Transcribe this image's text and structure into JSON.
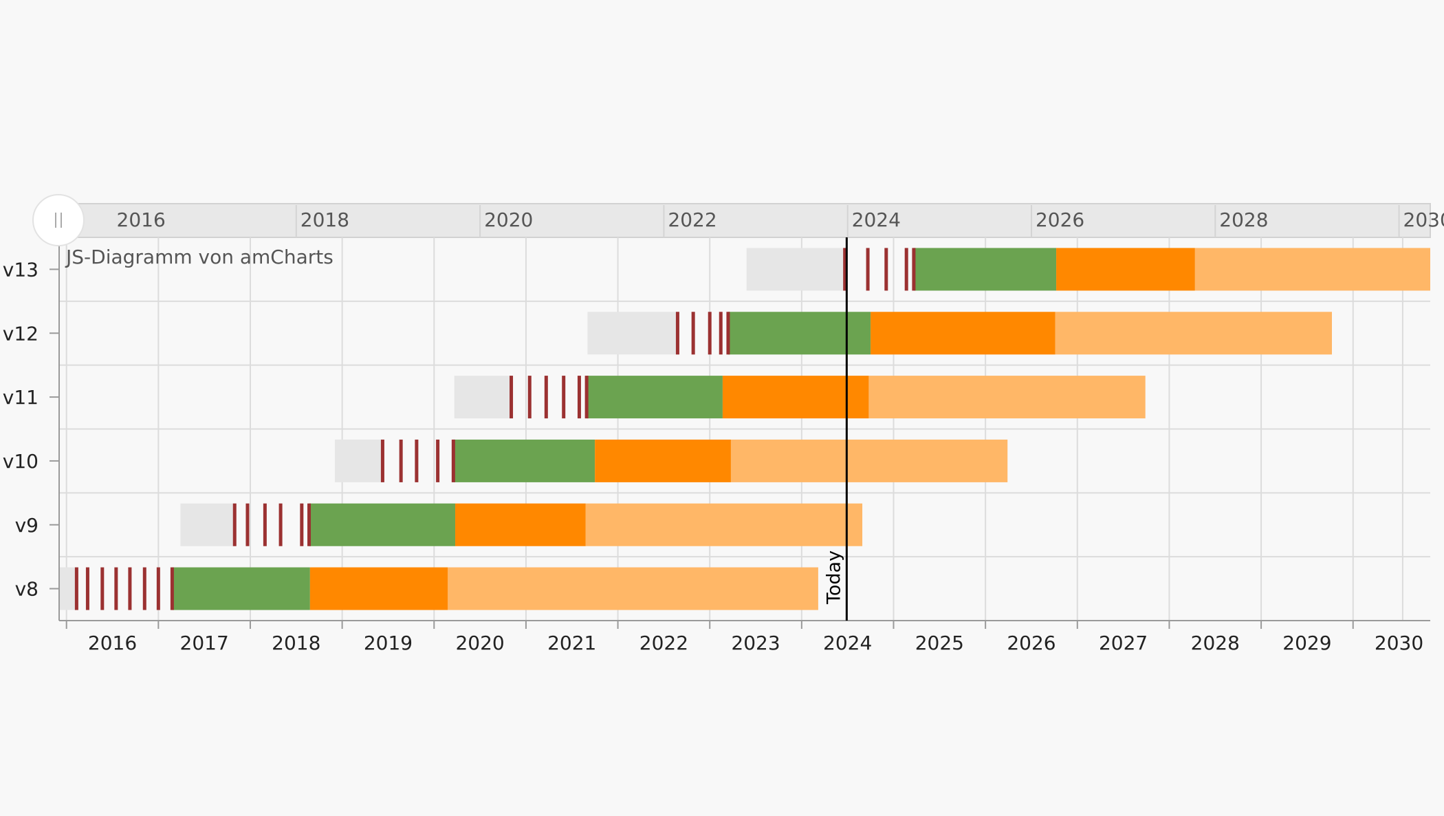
{
  "chart_data": {
    "type": "gantt",
    "credit": "JS-Diagramm von amCharts",
    "today_label": "Today",
    "today_date": 2023.99,
    "scrollbar_ticks": [
      "2016",
      "2018",
      "2020",
      "2022",
      "2024",
      "2026",
      "2028",
      "2030"
    ],
    "xaxis_ticks": [
      "2016",
      "2017",
      "2018",
      "2019",
      "2020",
      "2021",
      "2022",
      "2023",
      "2024",
      "2025",
      "2026",
      "2027",
      "2028",
      "2029",
      "2030"
    ],
    "xlim": [
      2015.42,
      2030.34
    ],
    "categories": [
      "v13",
      "v12",
      "v11",
      "v10",
      "v9",
      "v8"
    ],
    "phase_colors": {
      "development": "#e6e6e6",
      "milestone": "#9b3131",
      "active": "#6ba350",
      "maintenance": "#ff8800",
      "extended": "#ffb767"
    },
    "rows": [
      {
        "category": "v13",
        "development": [
          2022.9,
          2023.96
        ],
        "milestones": [
          2023.97,
          2024.22,
          2024.42,
          2024.64,
          2024.72
        ],
        "active": [
          2024.72,
          2026.27
        ],
        "maintenance": [
          2026.27,
          2027.78
        ],
        "extended": [
          2027.78,
          2030.79
        ]
      },
      {
        "category": "v12",
        "development": [
          2021.17,
          2022.15
        ],
        "milestones": [
          2022.15,
          2022.32,
          2022.5,
          2022.62,
          2022.7
        ],
        "active": [
          2022.7,
          2024.25
        ],
        "maintenance": [
          2024.25,
          2026.26
        ],
        "extended": [
          2026.26,
          2029.27
        ]
      },
      {
        "category": "v11",
        "development": [
          2019.72,
          2020.34
        ],
        "milestones": [
          2020.34,
          2020.54,
          2020.72,
          2020.91,
          2021.08,
          2021.16
        ],
        "active": [
          2021.16,
          2022.64
        ],
        "maintenance": [
          2022.64,
          2024.23
        ],
        "extended": [
          2024.23,
          2027.24
        ]
      },
      {
        "category": "v10",
        "development": [
          2018.42,
          2018.94
        ],
        "milestones": [
          2018.94,
          2019.14,
          2019.31,
          2019.54,
          2019.71
        ],
        "active": [
          2019.71,
          2021.25
        ],
        "maintenance": [
          2021.25,
          2022.73
        ],
        "extended": [
          2022.73,
          2025.74
        ]
      },
      {
        "category": "v9",
        "development": [
          2016.74,
          2017.33
        ],
        "milestones": [
          2017.33,
          2017.47,
          2017.66,
          2017.83,
          2018.06,
          2018.14
        ],
        "active": [
          2018.14,
          2019.73
        ],
        "maintenance": [
          2019.73,
          2021.15
        ],
        "extended": [
          2021.15,
          2024.16
        ]
      },
      {
        "category": "v8",
        "development": [
          2015.35,
          2015.61
        ],
        "milestones": [
          2015.61,
          2015.73,
          2015.89,
          2016.04,
          2016.19,
          2016.35,
          2016.5,
          2016.65
        ],
        "active": [
          2016.65,
          2018.15
        ],
        "maintenance": [
          2018.15,
          2019.65
        ],
        "extended": [
          2019.65,
          2023.68
        ]
      }
    ]
  }
}
